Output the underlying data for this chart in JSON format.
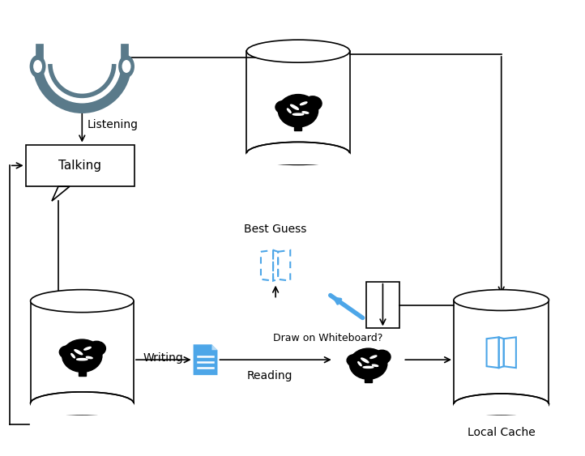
{
  "bg_color": "#ffffff",
  "headphone_color": "#5a7a8a",
  "brain_color": "#000000",
  "blue_color": "#4da6e8",
  "arrow_color": "#000000",
  "text_color": "#000000",
  "labels": {
    "listening": "Listening",
    "talking": "Talking",
    "writing": "Writing",
    "reading": "Reading",
    "best_guess": "Best Guess",
    "draw_whiteboard": "Draw on Whiteboard?",
    "local_cache": "Local Cache"
  }
}
